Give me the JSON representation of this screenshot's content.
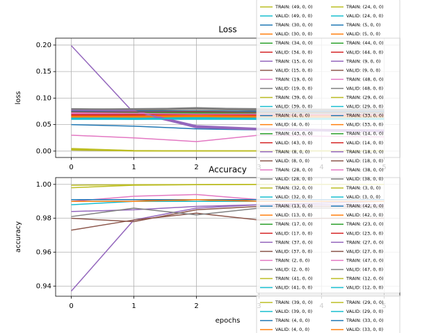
{
  "chart_data": [
    {
      "type": "line",
      "title": "Loss",
      "x_label": "epochs",
      "y_label": "loss",
      "x": [
        0,
        1,
        2,
        3,
        4,
        5
      ],
      "xlim": [
        -0.25,
        5.25
      ],
      "xticks": [
        0,
        1,
        2,
        3,
        4,
        5
      ],
      "ylim": [
        -0.012,
        0.213
      ],
      "yticks": [
        {
          "value": 0,
          "label": "0.00"
        },
        0.05,
        {
          "value": 0.1,
          "label": "0.10"
        },
        0.15,
        {
          "value": 0.2,
          "label": "0.20"
        }
      ],
      "grid": true,
      "legend_ncol": 2,
      "series": [
        {
          "name": "TRAIN: (49, 0, 0)",
          "color": "#bcbd22",
          "values": [
            0.005,
            0.001,
            0.0005,
            0.0003,
            0.0002,
            0.0002
          ]
        },
        {
          "name": "VALID: (49, 0, 0)",
          "color": "#17becf",
          "values": [
            0.062,
            0.061,
            0.062,
            0.061,
            0.062,
            0.062
          ]
        },
        {
          "name": "TRAIN: (30, 0, 0)",
          "color": "#1f77b4",
          "values": [
            0.05,
            0.047,
            0.042,
            0.04,
            0.038,
            0.037
          ]
        },
        {
          "name": "VALID: (30, 0, 0)",
          "color": "#ff7f0e",
          "values": [
            0.066,
            0.065,
            0.066,
            0.067,
            0.066,
            0.066
          ]
        },
        {
          "name": "TRAIN: (34, 0, 0)",
          "color": "#2ca02c",
          "values": [
            0.07,
            0.068,
            0.067,
            0.066,
            0.066,
            0.065
          ]
        },
        {
          "name": "VALID: (34, 0, 0)",
          "color": "#d62728",
          "values": [
            0.068,
            0.068,
            0.069,
            0.068,
            0.068,
            0.068
          ]
        },
        {
          "name": "TRAIN: (15, 0, 0)",
          "color": "#9467bd",
          "values": [
            0.199,
            0.072,
            0.045,
            0.04,
            0.038,
            0.036
          ]
        },
        {
          "name": "VALID: (15, 0, 0)",
          "color": "#8c564b",
          "values": [
            0.072,
            0.071,
            0.073,
            0.072,
            0.072,
            0.072
          ]
        },
        {
          "name": "TRAIN: (19, 0, 0)",
          "color": "#e377c2",
          "values": [
            0.03,
            0.025,
            0.018,
            0.03,
            0.028,
            0.027
          ]
        },
        {
          "name": "VALID: (19, 0, 0)",
          "color": "#7f7f7f",
          "values": [
            0.08,
            0.079,
            0.082,
            0.079,
            0.079,
            0.079
          ]
        },
        {
          "name": "TRAIN: (39, 0, 0)",
          "color": "#bcbd22",
          "values": [
            0.002,
            0.0005,
            0.0003,
            0.0002,
            0.0002,
            0.0002
          ]
        },
        {
          "name": "VALID: (39, 0, 0)",
          "color": "#17becf",
          "values": [
            0.06,
            0.06,
            0.06,
            0.06,
            0.06,
            0.06
          ]
        },
        {
          "name": "TRAIN: (4, 0, 0)",
          "color": "#1f77b4",
          "values": [
            0.075,
            0.074,
            0.074,
            0.074,
            0.074,
            0.074
          ]
        },
        {
          "name": "VALID: (4, 0, 0)",
          "color": "#ff7f0e",
          "values": [
            0.063,
            0.063,
            0.064,
            0.063,
            0.063,
            0.063
          ]
        },
        {
          "name": "TRAIN: (43, 0, 0)",
          "color": "#2ca02c",
          "values": [
            0.074,
            0.072,
            0.071,
            0.071,
            0.07,
            0.07
          ]
        },
        {
          "name": "VALID: (43, 0, 0)",
          "color": "#d62728",
          "values": [
            0.069,
            0.069,
            0.07,
            0.069,
            0.069,
            0.069
          ]
        },
        {
          "name": "TRAIN: (8, 0, 0)",
          "color": "#9467bd",
          "values": [
            0.078,
            0.076,
            0.048,
            0.043,
            0.041,
            0.04
          ]
        },
        {
          "name": "VALID: (8, 0, 0)",
          "color": "#8c564b",
          "values": [
            0.074,
            0.074,
            0.075,
            0.074,
            0.074,
            0.074
          ]
        },
        {
          "name": "TRAIN: (28, 0, 0)",
          "color": "#e377c2",
          "values": [
            0.071,
            0.07,
            0.07,
            0.069,
            0.069,
            0.069
          ]
        },
        {
          "name": "VALID: (28, 0, 0)",
          "color": "#7f7f7f",
          "values": [
            0.078,
            0.078,
            0.08,
            0.078,
            0.078,
            0.078
          ]
        },
        {
          "name": "TRAIN: (32, 0, 0)",
          "color": "#bcbd22",
          "values": [
            0.003,
            0.0006,
            0.0003,
            0.0002,
            0.0002,
            0.0002
          ]
        },
        {
          "name": "VALID: (32, 0, 0)",
          "color": "#17becf",
          "values": [
            0.061,
            0.061,
            0.061,
            0.061,
            0.061,
            0.061
          ]
        },
        {
          "name": "TRAIN: (13, 0, 0)",
          "color": "#1f77b4",
          "values": [
            0.076,
            0.075,
            0.075,
            0.075,
            0.074,
            0.074
          ]
        },
        {
          "name": "VALID: (13, 0, 0)",
          "color": "#ff7f0e",
          "values": [
            0.064,
            0.064,
            0.065,
            0.064,
            0.064,
            0.064
          ]
        },
        {
          "name": "TRAIN: (17, 0, 0)",
          "color": "#2ca02c",
          "values": [
            0.073,
            0.072,
            0.072,
            0.071,
            0.071,
            0.071
          ]
        },
        {
          "name": "VALID: (17, 0, 0)",
          "color": "#d62728",
          "values": [
            0.07,
            0.07,
            0.071,
            0.07,
            0.07,
            0.07
          ]
        },
        {
          "name": "TRAIN: (37, 0, 0)",
          "color": "#9467bd",
          "values": [
            0.077,
            0.075,
            0.046,
            0.042,
            0.04,
            0.039
          ]
        },
        {
          "name": "VALID: (37, 0, 0)",
          "color": "#8c564b",
          "values": [
            0.075,
            0.075,
            0.076,
            0.075,
            0.075,
            0.075
          ]
        },
        {
          "name": "TRAIN: (2, 0, 0)",
          "color": "#e377c2",
          "values": [
            0.072,
            0.071,
            0.071,
            0.07,
            0.07,
            0.07
          ]
        },
        {
          "name": "VALID: (2, 0, 0)",
          "color": "#7f7f7f",
          "values": [
            0.079,
            0.079,
            0.081,
            0.079,
            0.079,
            0.079
          ]
        },
        {
          "name": "TRAIN: (41, 0, 0)",
          "color": "#bcbd22",
          "values": [
            0.004,
            0.0008,
            0.0004,
            0.0002,
            0.0002,
            0.0002
          ]
        },
        {
          "name": "VALID: (41, 0, 0)",
          "color": "#17becf",
          "values": [
            0.062,
            0.062,
            0.062,
            0.062,
            0.062,
            0.062
          ]
        },
        {
          "name": "TRAIN: (24, 0, 0)",
          "color": "#bcbd22",
          "values": [
            0.003,
            0.0007,
            0.0003,
            0.0002,
            0.0002,
            0.0002
          ]
        },
        {
          "name": "VALID: (24, 0, 0)",
          "color": "#17becf",
          "values": [
            0.063,
            0.062,
            0.063,
            0.062,
            0.062,
            0.062
          ]
        },
        {
          "name": "TRAIN: (5, 0, 0)",
          "color": "#1f77b4",
          "values": [
            0.074,
            0.073,
            0.073,
            0.073,
            0.072,
            0.072
          ]
        },
        {
          "name": "VALID: (5, 0, 0)",
          "color": "#ff7f0e",
          "values": [
            0.065,
            0.065,
            0.066,
            0.065,
            0.065,
            0.065
          ]
        },
        {
          "name": "TRAIN: (44, 0, 0)",
          "color": "#2ca02c",
          "values": [
            0.072,
            0.071,
            0.07,
            0.07,
            0.069,
            0.069
          ]
        },
        {
          "name": "VALID: (44, 0, 0)",
          "color": "#d62728",
          "values": [
            0.067,
            0.067,
            0.068,
            0.067,
            0.067,
            0.067
          ]
        },
        {
          "name": "TRAIN: (9, 0, 0)",
          "color": "#9467bd",
          "values": [
            0.076,
            0.074,
            0.044,
            0.041,
            0.039,
            0.038
          ]
        },
        {
          "name": "VALID: (9, 0, 0)",
          "color": "#8c564b",
          "values": [
            0.073,
            0.073,
            0.074,
            0.073,
            0.073,
            0.073
          ]
        },
        {
          "name": "TRAIN: (48, 0, 0)",
          "color": "#e377c2",
          "values": [
            0.07,
            0.069,
            0.069,
            0.068,
            0.068,
            0.068
          ]
        },
        {
          "name": "VALID: (48, 0, 0)",
          "color": "#7f7f7f",
          "values": [
            0.077,
            0.077,
            0.079,
            0.077,
            0.077,
            0.077
          ]
        },
        {
          "name": "TRAIN: (29, 0, 0)",
          "color": "#bcbd22",
          "values": [
            0.002,
            0.0004,
            0.0002,
            0.0002,
            0.0002,
            0.0002
          ]
        },
        {
          "name": "VALID: (29, 0, 0)",
          "color": "#17becf",
          "values": [
            0.061,
            0.06,
            0.061,
            0.06,
            0.06,
            0.06
          ]
        },
        {
          "name": "TRAIN: (33, 0, 0)",
          "color": "#1f77b4",
          "values": [
            0.077,
            0.076,
            0.076,
            0.075,
            0.075,
            0.075
          ]
        },
        {
          "name": "VALID: (33, 0, 0)",
          "color": "#ff7f0e",
          "values": [
            0.064,
            0.065,
            0.065,
            0.064,
            0.064,
            0.064
          ]
        },
        {
          "name": "TRAIN: (14, 0, 0)",
          "color": "#2ca02c",
          "values": [
            0.075,
            0.073,
            0.072,
            0.072,
            0.071,
            0.071
          ]
        },
        {
          "name": "VALID: (14, 0, 0)",
          "color": "#d62728",
          "values": [
            0.069,
            0.069,
            0.07,
            0.069,
            0.069,
            0.069
          ]
        },
        {
          "name": "TRAIN: (18, 0, 0)",
          "color": "#9467bd",
          "values": [
            0.079,
            0.077,
            0.047,
            0.042,
            0.04,
            0.039
          ]
        },
        {
          "name": "VALID: (18, 0, 0)",
          "color": "#8c564b",
          "values": [
            0.074,
            0.075,
            0.075,
            0.074,
            0.074,
            0.074
          ]
        },
        {
          "name": "TRAIN: (38, 0, 0)",
          "color": "#e377c2",
          "values": [
            0.071,
            0.071,
            0.07,
            0.07,
            0.069,
            0.069
          ]
        },
        {
          "name": "VALID: (38, 0, 0)",
          "color": "#7f7f7f",
          "values": [
            0.078,
            0.079,
            0.08,
            0.079,
            0.078,
            0.078
          ]
        },
        {
          "name": "TRAIN: (3, 0, 0)",
          "color": "#bcbd22",
          "values": [
            0.004,
            0.0009,
            0.0004,
            0.0003,
            0.0002,
            0.0002
          ]
        },
        {
          "name": "VALID: (3, 0, 0)",
          "color": "#17becf",
          "values": [
            0.062,
            0.061,
            0.062,
            0.062,
            0.061,
            0.061
          ]
        },
        {
          "name": "TRAIN: (42, 0, 0)",
          "color": "#1f77b4",
          "values": [
            0.076,
            0.075,
            0.074,
            0.074,
            0.074,
            0.074
          ]
        },
        {
          "name": "VALID: (42, 0, 0)",
          "color": "#ff7f0e",
          "values": [
            0.066,
            0.066,
            0.067,
            0.066,
            0.066,
            0.066
          ]
        },
        {
          "name": "TRAIN: (23, 0, 0)",
          "color": "#2ca02c",
          "values": [
            0.073,
            0.071,
            0.071,
            0.07,
            0.07,
            0.07
          ]
        },
        {
          "name": "VALID: (23, 0, 0)",
          "color": "#d62728",
          "values": [
            0.068,
            0.069,
            0.069,
            0.068,
            0.068,
            0.068
          ]
        },
        {
          "name": "TRAIN: (27, 0, 0)",
          "color": "#9467bd",
          "values": [
            0.077,
            0.076,
            0.045,
            0.041,
            0.039,
            0.038
          ]
        },
        {
          "name": "VALID: (27, 0, 0)",
          "color": "#8c564b",
          "values": [
            0.073,
            0.074,
            0.074,
            0.073,
            0.073,
            0.073
          ]
        },
        {
          "name": "TRAIN: (47, 0, 0)",
          "color": "#e377c2",
          "values": [
            0.072,
            0.071,
            0.07,
            0.07,
            0.07,
            0.07
          ]
        },
        {
          "name": "VALID: (47, 0, 0)",
          "color": "#7f7f7f",
          "values": [
            0.079,
            0.08,
            0.081,
            0.08,
            0.079,
            0.079
          ]
        },
        {
          "name": "TRAIN: (12, 0, 0)",
          "color": "#bcbd22",
          "values": [
            0.003,
            0.0006,
            0.0003,
            0.0002,
            0.0002,
            0.0002
          ]
        },
        {
          "name": "VALID: (12, 0, 0)",
          "color": "#17becf",
          "values": [
            0.061,
            0.061,
            0.061,
            0.061,
            0.061,
            0.061
          ]
        }
      ]
    },
    {
      "type": "line",
      "title": "Accuracy",
      "x_label": "epochs",
      "y_label": "accuracy",
      "x": [
        0,
        1,
        2,
        3,
        4,
        5
      ],
      "xlim": [
        -0.25,
        5.25
      ],
      "xticks": [
        0,
        1,
        2,
        3,
        4,
        5
      ],
      "ylim": [
        0.934,
        1.004
      ],
      "yticks": [
        0.94,
        0.96,
        0.98,
        {
          "value": 1,
          "label": "1.00"
        }
      ],
      "grid": true,
      "legend_ncol": 2,
      "series": [
        {
          "color": "#9467bd",
          "values": [
            0.937,
            0.979,
            0.986,
            0.988,
            0.989,
            0.99
          ]
        },
        {
          "color": "#8c564b",
          "values": [
            0.973,
            0.979,
            0.983,
            0.979,
            0.98,
            0.98
          ]
        },
        {
          "color": "#e377c2",
          "values": [
            0.99,
            0.993,
            0.994,
            0.991,
            0.991,
            0.991
          ]
        },
        {
          "color": "#8c564b",
          "values": [
            0.98,
            0.978,
            0.985,
            0.987,
            0.987,
            0.987
          ]
        },
        {
          "color": "#9467bd",
          "values": [
            0.984,
            0.985,
            0.987,
            0.988,
            0.988,
            0.988
          ]
        },
        {
          "color": "#7f7f7f",
          "values": [
            0.981,
            0.986,
            0.982,
            0.986,
            0.986,
            0.986
          ]
        },
        {
          "name": "TRAIN: (39, 0, 0)",
          "color": "#bcbd22",
          "values": [
            0.998,
            0.9995,
            0.9998,
            0.9999,
            1,
            1
          ]
        },
        {
          "name": "VALID: (39, 0, 0)",
          "color": "#17becf",
          "values": [
            0.991,
            0.991,
            0.991,
            0.991,
            0.991,
            0.991
          ]
        },
        {
          "name": "TRAIN: (4, 0, 0)",
          "color": "#1f77b4",
          "values": [
            0.99,
            0.99,
            0.99,
            0.99,
            0.99,
            0.99
          ]
        },
        {
          "name": "VALID: (4, 0, 0)",
          "color": "#ff7f0e",
          "values": [
            0.991,
            0.991,
            0.99,
            0.991,
            0.991,
            0.991
          ]
        },
        {
          "name": "TRAIN: (29, 0, 0)",
          "color": "#bcbd22",
          "values": [
            0.9995,
            0.9998,
            0.9999,
            1,
            1,
            1
          ]
        },
        {
          "name": "VALID: (29, 0, 0)",
          "color": "#17becf",
          "values": [
            0.988,
            0.99,
            0.99,
            0.99,
            0.99,
            0.99
          ]
        },
        {
          "name": "TRAIN: (33, 0, 0)",
          "color": "#1f77b4",
          "values": [
            0.991,
            0.991,
            0.991,
            0.991,
            0.991,
            0.991
          ]
        },
        {
          "name": "VALID: (33, 0, 0)",
          "color": "#ff7f0e",
          "values": [
            0.99,
            0.99,
            0.991,
            0.99,
            0.99,
            0.99
          ]
        }
      ]
    }
  ]
}
